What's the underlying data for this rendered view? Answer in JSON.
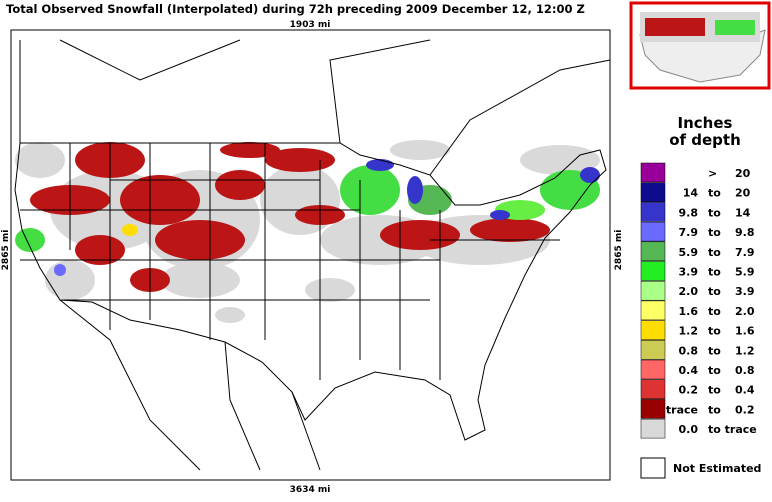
{
  "header": {
    "title": "Total Observed Snowfall (Interpolated) during 72h preceding 2009 December 12, 12:00 Z"
  },
  "scale": {
    "top": "1903 mi",
    "bottom": "3634 mi",
    "left": "2865 mi",
    "right": "2865 mi"
  },
  "legend": {
    "title": [
      "Inches",
      "of depth"
    ],
    "rows": [
      {
        "mid": ">",
        "high": "20",
        "color": "#990099"
      },
      {
        "low": "14",
        "mid": "to",
        "high": "20",
        "color": "#0c0c8c"
      },
      {
        "low": "9.8",
        "mid": "to",
        "high": "14",
        "color": "#3535cc"
      },
      {
        "low": "7.9",
        "mid": "to",
        "high": "9.8",
        "color": "#6a6aff"
      },
      {
        "low": "5.9",
        "mid": "to",
        "high": "7.9",
        "color": "#55b855"
      },
      {
        "low": "3.9",
        "mid": "to",
        "high": "5.9",
        "color": "#22ee22"
      },
      {
        "low": "2.0",
        "mid": "to",
        "high": "3.9",
        "color": "#aaff88"
      },
      {
        "low": "1.6",
        "mid": "to",
        "high": "2.0",
        "color": "#ffff66"
      },
      {
        "low": "1.2",
        "mid": "to",
        "high": "1.6",
        "color": "#ffdd00"
      },
      {
        "low": "0.8",
        "mid": "to",
        "high": "1.2",
        "color": "#cccc55"
      },
      {
        "low": "0.4",
        "mid": "to",
        "high": "0.8",
        "color": "#ff6666"
      },
      {
        "low": "0.2",
        "mid": "to",
        "high": "0.4",
        "color": "#dd3333"
      },
      {
        "low": "trace",
        "mid": "to",
        "high": "0.2",
        "color": "#990000"
      },
      {
        "low": "0.0",
        "mid": "to trace",
        "color": "#d9d9d9"
      }
    ],
    "not_estimated": "Not Estimated"
  }
}
